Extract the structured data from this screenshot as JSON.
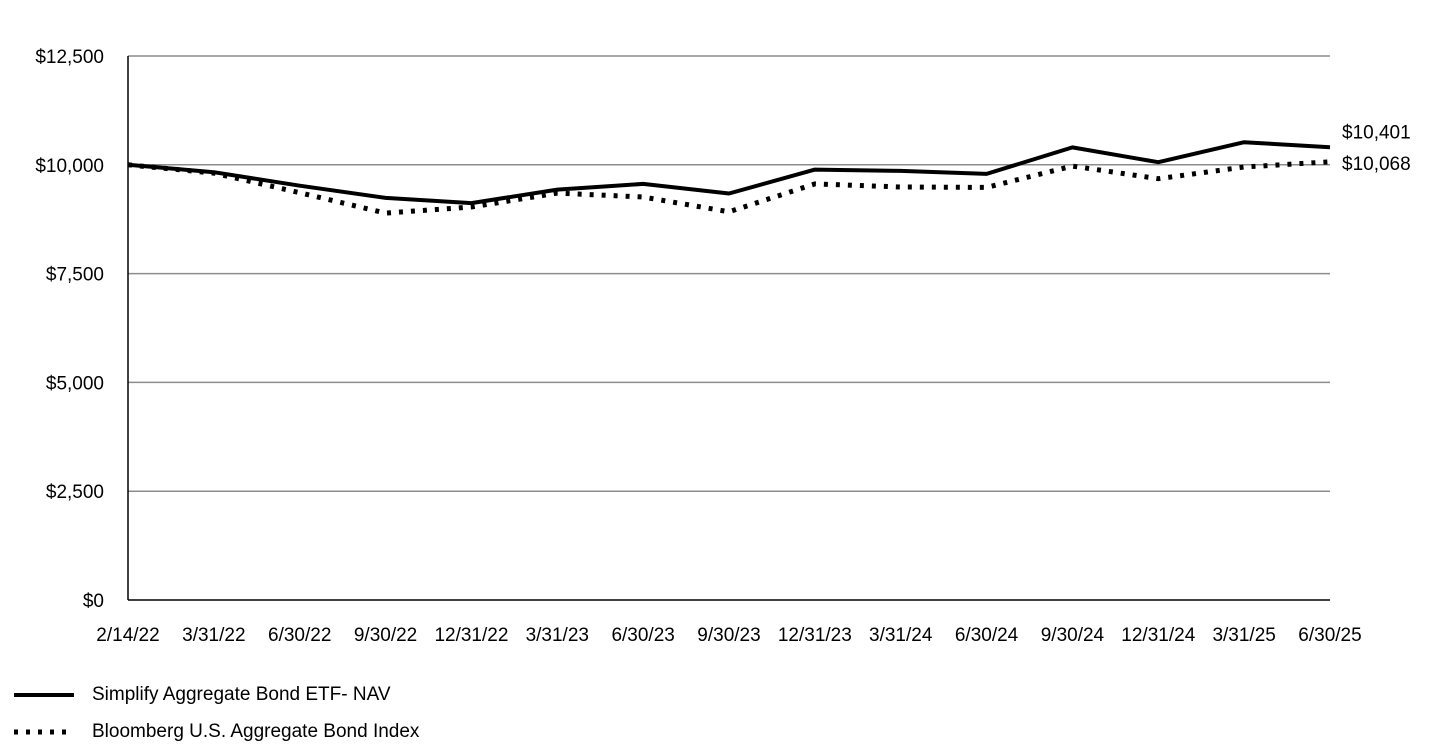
{
  "chart_data": {
    "type": "line",
    "title": "",
    "xlabel": "",
    "ylabel": "",
    "categories": [
      "2/14/22",
      "3/31/22",
      "6/30/22",
      "9/30/22",
      "12/31/22",
      "3/31/23",
      "6/30/23",
      "9/30/23",
      "12/31/23",
      "3/31/24",
      "6/30/24",
      "9/30/24",
      "12/31/24",
      "3/31/25",
      "6/30/25"
    ],
    "y_ticks": [
      "$0",
      "$2,500",
      "$5,000",
      "$7,500",
      "$10,000",
      "$12,500"
    ],
    "y_tick_values": [
      0,
      2500,
      5000,
      7500,
      10000,
      12500
    ],
    "ylim": [
      0,
      12500
    ],
    "grid": "horizontal",
    "legend_position": "bottom-left",
    "series": [
      {
        "name": "Simplify Aggregate Bond ETF- NAV",
        "style": "solid",
        "color": "#000000",
        "values": [
          10000,
          9830,
          9520,
          9240,
          9120,
          9430,
          9560,
          9340,
          9890,
          9860,
          9790,
          10400,
          10060,
          10520,
          10401
        ],
        "end_label": "$10,401"
      },
      {
        "name": "Bloomberg U.S. Aggregate Bond Index",
        "style": "dotted",
        "color": "#000000",
        "values": [
          10000,
          9810,
          9360,
          8890,
          9030,
          9350,
          9260,
          8920,
          9560,
          9490,
          9480,
          9970,
          9680,
          9950,
          10068
        ],
        "end_label": "$10,068"
      }
    ]
  }
}
